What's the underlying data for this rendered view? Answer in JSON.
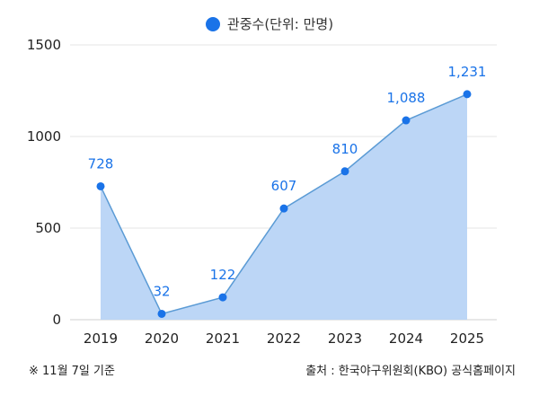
{
  "chart_data": {
    "type": "area",
    "categories": [
      "2019",
      "2020",
      "2021",
      "2022",
      "2023",
      "2024",
      "2025"
    ],
    "series": [
      {
        "name": "관중수(단위: 만명)",
        "values": [
          728,
          32,
          122,
          607,
          810,
          1088,
          1231
        ],
        "labels": [
          "728",
          "32",
          "122",
          "607",
          "810",
          "1,088",
          "1,231"
        ]
      }
    ],
    "y_ticks": [
      "0",
      "500",
      "1000",
      "1500"
    ],
    "ylim": [
      0,
      1500
    ],
    "grid": true,
    "legend_position": "top-center",
    "colors": {
      "line": "#5b9bd5",
      "fill": "#b8d4f5",
      "marker": "#1a73e8",
      "label": "#1a73e8",
      "grid": "#e6e6e6"
    }
  },
  "legend": {
    "label": "관중수(단위: 만명)"
  },
  "footnote": "※ 11월 7일 기준",
  "source": "출처 : 한국야구위원회(KBO) 공식홈페이지"
}
